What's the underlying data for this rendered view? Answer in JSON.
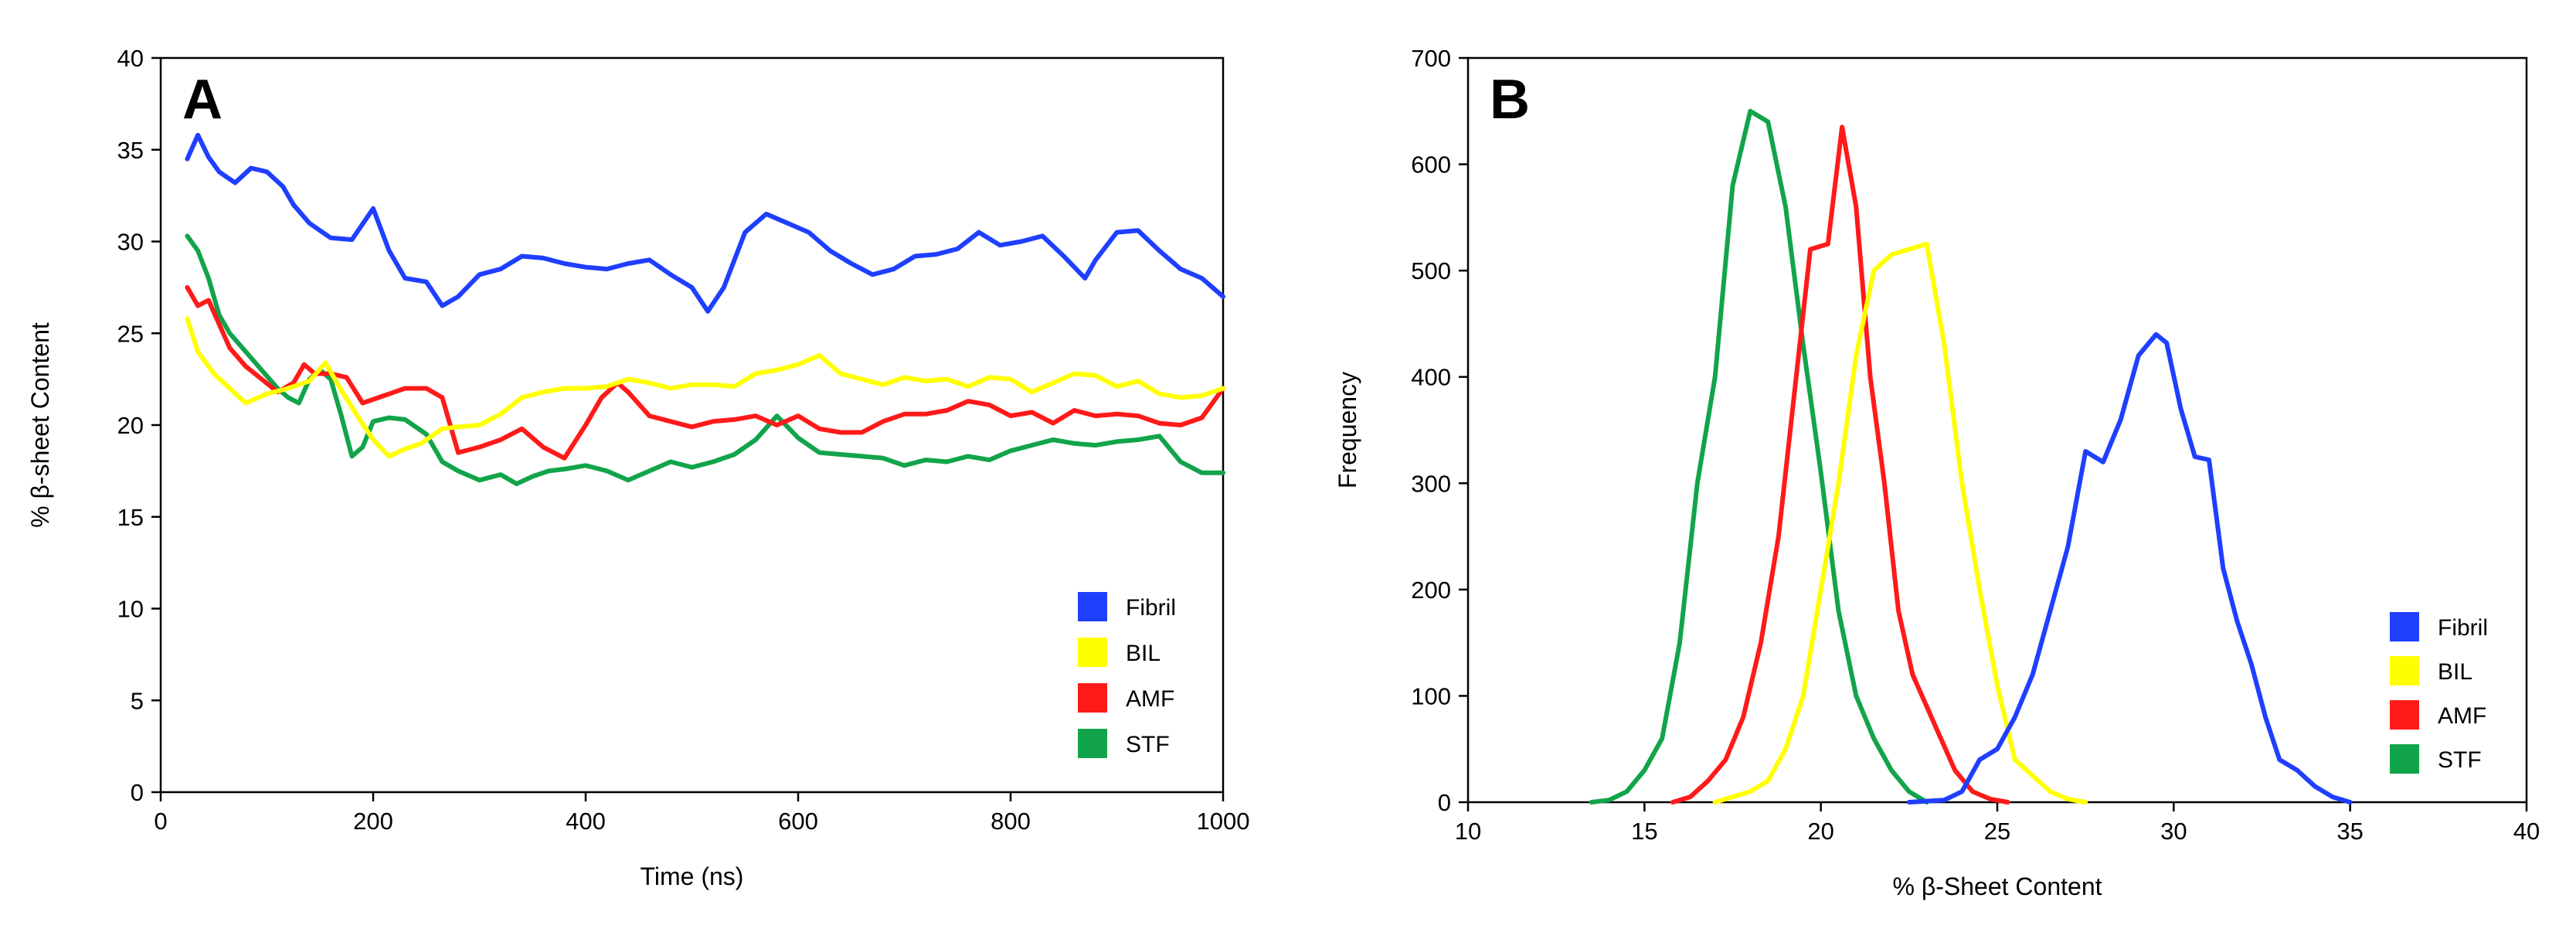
{
  "colors": {
    "Fibril": "#1f3fff",
    "BIL": "#ffff00",
    "AMF": "#ff1a1a",
    "STF": "#12a44a",
    "axis": "#000000"
  },
  "chart_data": [
    {
      "panel": "A",
      "type": "line",
      "title": "",
      "xlabel": "Time (ns)",
      "ylabel": "% β-sheet Content",
      "xlim": [
        0,
        1000
      ],
      "ylim": [
        0,
        40
      ],
      "xticks": [
        0,
        200,
        400,
        600,
        800,
        1000
      ],
      "yticks": [
        0,
        5,
        10,
        15,
        20,
        25,
        30,
        35,
        40
      ],
      "legend": [
        "Fibril",
        "BIL",
        "AMF",
        "STF"
      ],
      "legend_position": "bottom-right",
      "series": [
        {
          "name": "Fibril",
          "x": [
            25,
            35,
            45,
            55,
            70,
            85,
            100,
            115,
            125,
            140,
            160,
            180,
            200,
            215,
            230,
            250,
            265,
            280,
            300,
            320,
            340,
            360,
            380,
            400,
            420,
            440,
            460,
            480,
            500,
            515,
            530,
            550,
            570,
            590,
            610,
            630,
            650,
            670,
            690,
            710,
            730,
            750,
            770,
            790,
            810,
            830,
            850,
            870,
            880,
            900,
            920,
            940,
            960,
            980,
            1000
          ],
          "y": [
            34.5,
            35.8,
            34.6,
            33.8,
            33.2,
            34,
            33.8,
            33,
            32,
            31,
            30.2,
            30.1,
            31.8,
            29.5,
            28,
            27.8,
            26.5,
            27,
            28.2,
            28.5,
            29.2,
            29.1,
            28.8,
            28.6,
            28.5,
            28.8,
            29,
            28.2,
            27.5,
            26.2,
            27.5,
            30.5,
            31.5,
            31,
            30.5,
            29.5,
            28.8,
            28.2,
            28.5,
            29.2,
            29.3,
            29.6,
            30.5,
            29.8,
            30,
            30.3,
            29.2,
            28,
            29,
            30.5,
            30.6,
            29.5,
            28.5,
            28,
            27
          ]
        },
        {
          "name": "BIL",
          "x": [
            25,
            35,
            50,
            65,
            80,
            100,
            120,
            140,
            155,
            170,
            185,
            200,
            215,
            230,
            245,
            265,
            280,
            300,
            320,
            340,
            360,
            380,
            400,
            420,
            440,
            460,
            480,
            500,
            520,
            540,
            560,
            580,
            600,
            620,
            640,
            660,
            680,
            700,
            720,
            740,
            760,
            780,
            800,
            820,
            840,
            860,
            880,
            900,
            920,
            940,
            960,
            980,
            1000
          ],
          "y": [
            25.8,
            24,
            22.8,
            22,
            21.2,
            21.7,
            22,
            22.4,
            23.4,
            21.9,
            20.5,
            19.2,
            18.3,
            18.7,
            19,
            19.8,
            19.9,
            20,
            20.6,
            21.5,
            21.8,
            22,
            22,
            22.1,
            22.5,
            22.3,
            22,
            22.2,
            22.2,
            22.1,
            22.8,
            23,
            23.3,
            23.8,
            22.8,
            22.5,
            22.2,
            22.6,
            22.4,
            22.5,
            22.1,
            22.6,
            22.5,
            21.8,
            22.3,
            22.8,
            22.7,
            22.1,
            22.4,
            21.7,
            21.5,
            21.6,
            22
          ]
        },
        {
          "name": "AMF",
          "x": [
            25,
            35,
            45,
            55,
            65,
            80,
            95,
            110,
            125,
            135,
            145,
            160,
            175,
            190,
            210,
            230,
            250,
            265,
            280,
            300,
            320,
            340,
            360,
            380,
            400,
            415,
            430,
            440,
            460,
            480,
            500,
            520,
            540,
            560,
            580,
            600,
            620,
            640,
            660,
            680,
            700,
            720,
            740,
            760,
            780,
            800,
            820,
            840,
            860,
            880,
            900,
            920,
            940,
            960,
            980,
            1000
          ],
          "y": [
            27.5,
            26.5,
            26.8,
            25.5,
            24.2,
            23.2,
            22.5,
            21.8,
            22.3,
            23.3,
            22.8,
            22.8,
            22.6,
            21.2,
            21.6,
            22,
            22,
            21.5,
            18.5,
            18.8,
            19.2,
            19.8,
            18.8,
            18.2,
            20,
            21.5,
            22.3,
            21.8,
            20.5,
            20.2,
            19.9,
            20.2,
            20.3,
            20.5,
            20,
            20.5,
            19.8,
            19.6,
            19.6,
            20.2,
            20.6,
            20.6,
            20.8,
            21.3,
            21.1,
            20.5,
            20.7,
            20.1,
            20.8,
            20.5,
            20.6,
            20.5,
            20.1,
            20,
            20.4,
            22
          ]
        },
        {
          "name": "STF",
          "x": [
            25,
            35,
            45,
            55,
            65,
            80,
            95,
            110,
            120,
            130,
            140,
            150,
            160,
            170,
            180,
            190,
            200,
            215,
            230,
            250,
            265,
            280,
            300,
            320,
            335,
            350,
            365,
            380,
            400,
            420,
            440,
            460,
            480,
            500,
            520,
            540,
            560,
            580,
            600,
            620,
            640,
            660,
            680,
            700,
            720,
            740,
            760,
            780,
            800,
            820,
            840,
            860,
            880,
            900,
            920,
            940,
            960,
            980,
            1000
          ],
          "y": [
            30.3,
            29.5,
            28,
            26,
            25,
            24,
            23,
            22,
            21.5,
            21.2,
            22.5,
            23,
            22.5,
            20.5,
            18.3,
            18.8,
            20.2,
            20.4,
            20.3,
            19.5,
            18,
            17.5,
            17,
            17.3,
            16.8,
            17.2,
            17.5,
            17.6,
            17.8,
            17.5,
            17,
            17.5,
            18,
            17.7,
            18,
            18.4,
            19.2,
            20.5,
            19.3,
            18.5,
            18.4,
            18.3,
            18.2,
            17.8,
            18.1,
            18,
            18.3,
            18.1,
            18.6,
            18.9,
            19.2,
            19,
            18.9,
            19.1,
            19.2,
            19.4,
            18,
            17.4,
            17.4
          ]
        }
      ]
    },
    {
      "panel": "B",
      "type": "line",
      "title": "",
      "xlabel": "% β-Sheet Content",
      "ylabel": "Frequency",
      "xlim": [
        10,
        40
      ],
      "ylim": [
        0,
        700
      ],
      "xticks": [
        10,
        15,
        20,
        25,
        30,
        35,
        40
      ],
      "yticks": [
        0,
        100,
        200,
        300,
        400,
        500,
        600,
        700
      ],
      "legend": [
        "Fibril",
        "BIL",
        "AMF",
        "STF"
      ],
      "legend_position": "bottom-right",
      "series": [
        {
          "name": "Fibril",
          "x": [
            22.5,
            23.5,
            24,
            24.5,
            25,
            25.5,
            26,
            26.5,
            27,
            27.5,
            28,
            28.5,
            29,
            29.5,
            29.8,
            30.2,
            30.6,
            31,
            31.4,
            31.8,
            32.2,
            32.6,
            33,
            33.5,
            34,
            34.5,
            35
          ],
          "y": [
            0,
            2,
            10,
            40,
            50,
            80,
            120,
            180,
            240,
            330,
            320,
            360,
            420,
            440,
            432,
            370,
            325,
            322,
            220,
            170,
            130,
            80,
            40,
            30,
            15,
            5,
            0
          ]
        },
        {
          "name": "BIL",
          "x": [
            17,
            18,
            18.5,
            19,
            19.5,
            20,
            20.5,
            21,
            21.5,
            22,
            22.5,
            23,
            23.5,
            24,
            24.5,
            25,
            25.5,
            26,
            26.5,
            27,
            27.5
          ],
          "y": [
            0,
            10,
            20,
            50,
            100,
            200,
            300,
            420,
            500,
            515,
            520,
            525,
            430,
            300,
            200,
            110,
            40,
            25,
            10,
            3,
            0
          ]
        },
        {
          "name": "AMF",
          "x": [
            15.8,
            16.3,
            16.8,
            17.3,
            17.8,
            18.3,
            18.8,
            19.3,
            19.7,
            20.2,
            20.6,
            21,
            21.4,
            21.8,
            22.2,
            22.6,
            23,
            23.4,
            23.8,
            24.3,
            24.8,
            25.3
          ],
          "y": [
            0,
            5,
            20,
            40,
            80,
            150,
            250,
            400,
            520,
            525,
            635,
            560,
            400,
            300,
            180,
            120,
            90,
            60,
            30,
            10,
            3,
            0
          ]
        },
        {
          "name": "STF",
          "x": [
            13.5,
            14,
            14.5,
            15,
            15.5,
            16,
            16.5,
            17,
            17.5,
            18,
            18.5,
            19,
            19.5,
            20,
            20.5,
            21,
            21.5,
            22,
            22.5,
            23
          ],
          "y": [
            0,
            2,
            10,
            30,
            60,
            150,
            300,
            400,
            580,
            650,
            640,
            560,
            430,
            310,
            180,
            100,
            60,
            30,
            10,
            0
          ]
        }
      ]
    }
  ]
}
